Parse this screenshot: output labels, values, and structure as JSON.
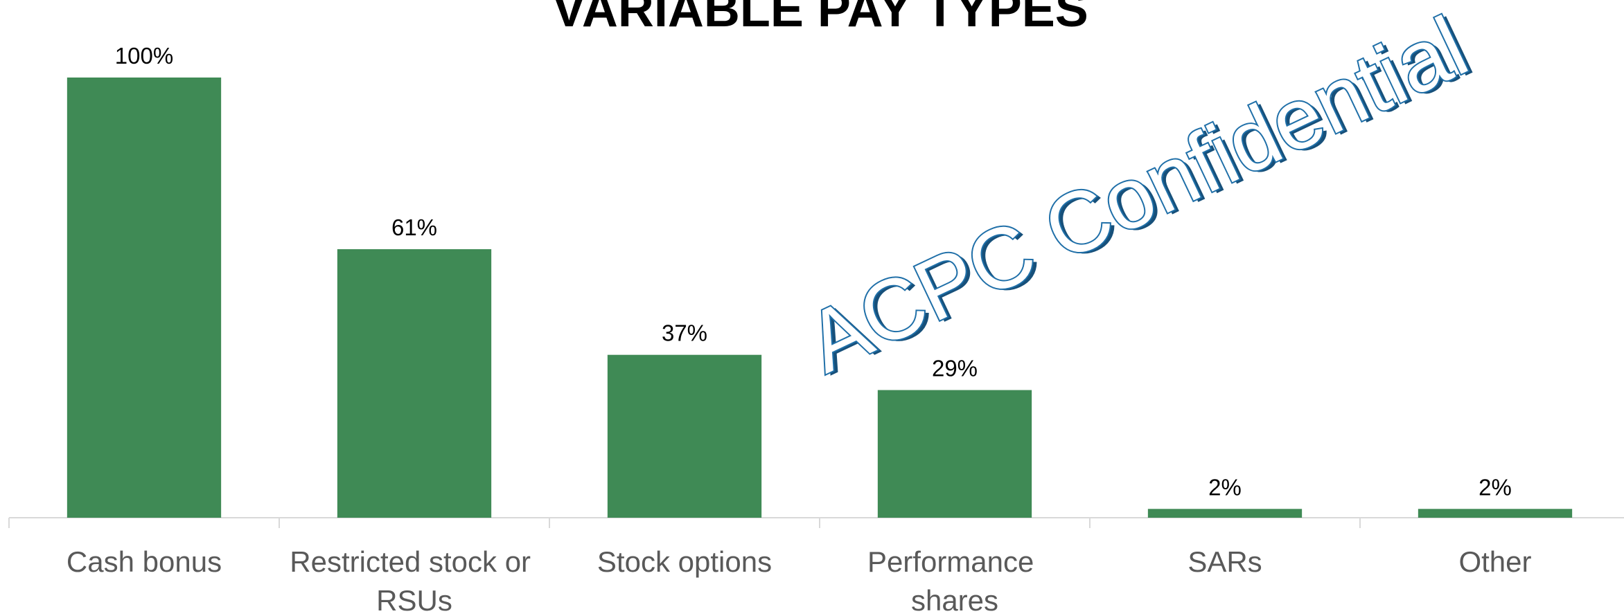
{
  "chart_data": {
    "type": "bar",
    "title": "VARIABLE PAY TYPES",
    "categories": [
      "Cash bonus",
      "Restricted stock or RSUs",
      "Stock options",
      "Performance shares",
      "SARs",
      "Other"
    ],
    "values": [
      100,
      61,
      37,
      29,
      2,
      2
    ],
    "value_labels": [
      "100%",
      "61%",
      "37%",
      "29%",
      "2%",
      "2%"
    ],
    "color": "#3f8a55",
    "ylim": [
      0,
      100
    ],
    "grid": false,
    "watermark": "ACPC Confidential"
  }
}
